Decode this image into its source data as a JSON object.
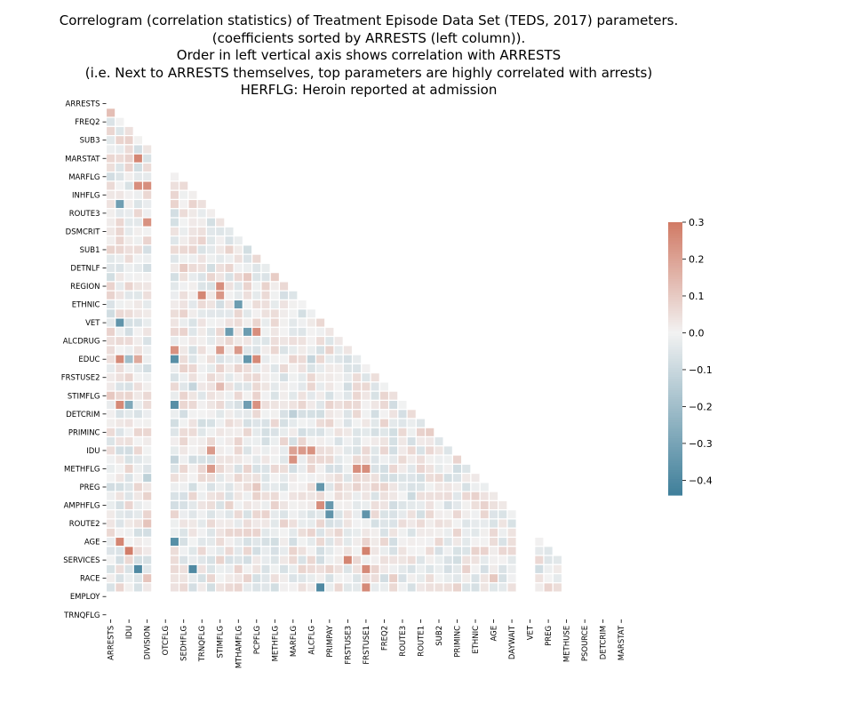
{
  "chart_data": {
    "type": "heatmap",
    "title_lines": [
      "Correlogram (correlation statistics) of Treatment Episode Data Set (TEDS, 2017) parameters.",
      "(coefficients sorted by ARRESTS (left column)).",
      "Order in left vertical axis shows correlation with ARRESTS",
      "(i.e. Next to ARRESTS themselves, top parameters are highly correlated with arrests)",
      "HERFLG: Heroin reported at admission"
    ],
    "y_tick_labels": [
      "ARRESTS",
      "FREQ2",
      "SUB3",
      "MARSTAT",
      "MARFLG",
      "INHFLG",
      "ROUTE3",
      "DSMCRIT",
      "SUB1",
      "DETNLF",
      "REGION",
      "ETHNIC",
      "VET",
      "ALCDRUG",
      "EDUC",
      "FRSTUSE2",
      "STIMFLG",
      "DETCRIM",
      "PRIMINC",
      "IDU",
      "METHFLG",
      "PREG",
      "AMPHFLG",
      "ROUTE2",
      "AGE",
      "SERVICES",
      "RACE",
      "EMPLOY",
      "TRNQFLG"
    ],
    "x_tick_labels": [
      "ARRESTS",
      "IDU",
      "DIVISION",
      "OTCFLG",
      "SEDHFLG",
      "TRNQFLG",
      "STIMFLG",
      "MTHAMFLG",
      "PCPFLG",
      "METHFLG",
      "MARFLG",
      "ALCFLG",
      "PRIMPAY",
      "FRSTUSE3",
      "FRSTUSE1",
      "FREQ2",
      "ROUTE3",
      "ROUTE1",
      "SUB2",
      "PRIMINC",
      "ETHNIC",
      "AGE",
      "DAYWAIT",
      "VET",
      "PREG",
      "METHUSE",
      "PSOURCE",
      "DETCRIM",
      "MARSTAT"
    ],
    "n_variables": 57,
    "vmin": -0.44,
    "vmax": 0.3,
    "colorbar_ticks": [
      0.3,
      0.2,
      0.1,
      0.0,
      -0.1,
      -0.2,
      -0.3,
      -0.4
    ],
    "colorbar_tick_labels": [
      "0.3",
      "0.2",
      "0.1",
      "0.0",
      "−0.1",
      "−0.2",
      "−0.3",
      "−0.4"
    ],
    "colormap": "diverging_palette(220, 20)",
    "colors": {
      "negative": "#3f7f9a",
      "neutral": "#f2f2f2",
      "positive": "#d17a65"
    },
    "mask": "upper_triangle_including_diagonal",
    "empty_columns": [
      5,
      6,
      45,
      46,
      50,
      51,
      52,
      53,
      54,
      55,
      56
    ],
    "empty_rows": [
      54,
      55,
      56
    ],
    "notable_correlations": [
      {
        "row": 1,
        "col": 0,
        "value": 0.13
      },
      {
        "row": 6,
        "col": 3,
        "value": 0.27
      },
      {
        "row": 9,
        "col": 3,
        "value": 0.25
      },
      {
        "row": 9,
        "col": 4,
        "value": 0.25
      },
      {
        "row": 11,
        "col": 1,
        "value": -0.32
      },
      {
        "row": 13,
        "col": 4,
        "value": 0.24
      },
      {
        "row": 20,
        "col": 12,
        "value": 0.25
      },
      {
        "row": 21,
        "col": 10,
        "value": 0.27
      },
      {
        "row": 21,
        "col": 12,
        "value": 0.23
      },
      {
        "row": 22,
        "col": 14,
        "value": -0.33
      },
      {
        "row": 24,
        "col": 1,
        "value": -0.36
      },
      {
        "row": 25,
        "col": 13,
        "value": -0.33
      },
      {
        "row": 25,
        "col": 15,
        "value": -0.33
      },
      {
        "row": 25,
        "col": 16,
        "value": 0.25
      },
      {
        "row": 27,
        "col": 7,
        "value": 0.24
      },
      {
        "row": 27,
        "col": 12,
        "value": 0.22
      },
      {
        "row": 27,
        "col": 14,
        "value": 0.22
      },
      {
        "row": 28,
        "col": 1,
        "value": 0.26
      },
      {
        "row": 28,
        "col": 2,
        "value": -0.2
      },
      {
        "row": 28,
        "col": 3,
        "value": 0.18
      },
      {
        "row": 28,
        "col": 7,
        "value": -0.38
      },
      {
        "row": 28,
        "col": 15,
        "value": -0.35
      },
      {
        "row": 28,
        "col": 16,
        "value": 0.26
      },
      {
        "row": 33,
        "col": 1,
        "value": 0.26
      },
      {
        "row": 33,
        "col": 2,
        "value": -0.28
      },
      {
        "row": 33,
        "col": 7,
        "value": -0.38
      },
      {
        "row": 33,
        "col": 15,
        "value": -0.32
      },
      {
        "row": 33,
        "col": 16,
        "value": 0.24
      },
      {
        "row": 38,
        "col": 11,
        "value": 0.22
      },
      {
        "row": 38,
        "col": 20,
        "value": 0.2
      },
      {
        "row": 38,
        "col": 21,
        "value": 0.22
      },
      {
        "row": 38,
        "col": 22,
        "value": 0.24
      },
      {
        "row": 39,
        "col": 20,
        "value": 0.24
      },
      {
        "row": 40,
        "col": 11,
        "value": 0.22
      },
      {
        "row": 40,
        "col": 27,
        "value": 0.25
      },
      {
        "row": 40,
        "col": 28,
        "value": 0.25
      },
      {
        "row": 42,
        "col": 23,
        "value": -0.35
      },
      {
        "row": 44,
        "col": 23,
        "value": 0.25
      },
      {
        "row": 44,
        "col": 24,
        "value": -0.34
      },
      {
        "row": 45,
        "col": 24,
        "value": -0.36
      },
      {
        "row": 45,
        "col": 28,
        "value": -0.36
      },
      {
        "row": 48,
        "col": 1,
        "value": 0.27
      },
      {
        "row": 48,
        "col": 7,
        "value": -0.38
      },
      {
        "row": 49,
        "col": 2,
        "value": 0.29
      },
      {
        "row": 49,
        "col": 28,
        "value": 0.28
      },
      {
        "row": 50,
        "col": 26,
        "value": 0.27
      },
      {
        "row": 51,
        "col": 3,
        "value": -0.4
      },
      {
        "row": 51,
        "col": 5,
        "value": -0.38
      },
      {
        "row": 51,
        "col": 9,
        "value": -0.4
      },
      {
        "row": 51,
        "col": 28,
        "value": 0.26
      },
      {
        "row": 53,
        "col": 23,
        "value": -0.4
      },
      {
        "row": 53,
        "col": 28,
        "value": 0.26
      }
    ]
  }
}
